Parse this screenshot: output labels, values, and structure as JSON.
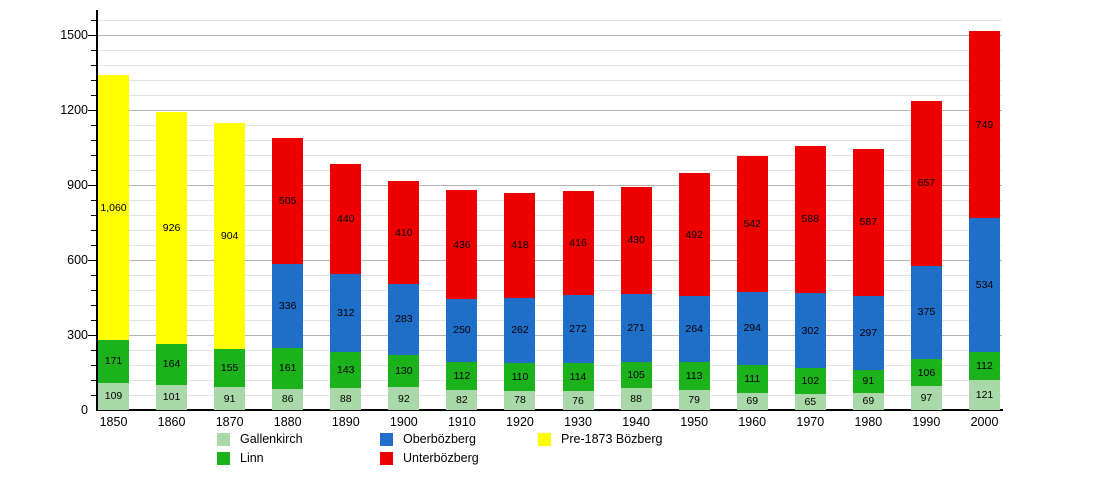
{
  "chart_data": {
    "type": "bar",
    "stacked": true,
    "title": "",
    "xlabel": "",
    "ylabel": "",
    "categories": [
      "1850",
      "1860",
      "1870",
      "1880",
      "1890",
      "1900",
      "1910",
      "1920",
      "1930",
      "1940",
      "1950",
      "1960",
      "1970",
      "1980",
      "1990",
      "2000"
    ],
    "series": [
      {
        "name": "Gallenkirch",
        "color": "#A9D8A9",
        "values": [
          109,
          101,
          91,
          86,
          88,
          92,
          82,
          78,
          76,
          88,
          79,
          69,
          65,
          69,
          97,
          121
        ]
      },
      {
        "name": "Linn",
        "color": "#1CB21C",
        "values": [
          171,
          164,
          155,
          161,
          143,
          130,
          112,
          110,
          114,
          105,
          113,
          111,
          102,
          91,
          106,
          112
        ]
      },
      {
        "name": "Oberbözberg",
        "color": "#1F6EC8",
        "values": [
          0,
          0,
          0,
          336,
          312,
          283,
          250,
          262,
          272,
          271,
          264,
          294,
          302,
          297,
          375,
          534
        ]
      },
      {
        "name": "Unterbözberg",
        "color": "#EE0000",
        "values": [
          0,
          0,
          0,
          505,
          440,
          410,
          436,
          418,
          416,
          430,
          492,
          542,
          588,
          587,
          657,
          749
        ]
      },
      {
        "name": "Pre-1873 Bözberg",
        "color": "#FFFF00",
        "values": [
          1060,
          926,
          904,
          0,
          0,
          0,
          0,
          0,
          0,
          0,
          0,
          0,
          0,
          0,
          0,
          0
        ]
      }
    ],
    "y_axis": {
      "major_ticks": [
        0,
        300,
        600,
        900,
        1200,
        1500
      ],
      "minor_step": 60,
      "minor_max": 1560,
      "range_top": 1600
    },
    "grid": {
      "minor_color": "#e4e4e4",
      "major_color": "#b3b3b3"
    },
    "axis_color": "#000000",
    "legend_position": "bottom",
    "legend_columns": [
      [
        0,
        1
      ],
      [
        2,
        3
      ],
      [
        4
      ]
    ],
    "value_labels": "all-segments"
  }
}
